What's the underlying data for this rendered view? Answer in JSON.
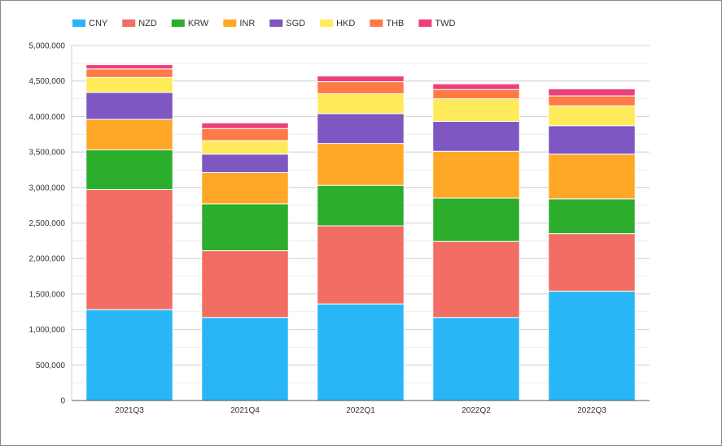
{
  "chart_data": {
    "type": "bar",
    "stacked": true,
    "categories": [
      "2021Q3",
      "2021Q4",
      "2022Q1",
      "2022Q2",
      "2022Q3"
    ],
    "ylim": [
      0,
      5000000
    ],
    "y_ticks": [
      "0",
      "500,000",
      "1,000,000",
      "1,500,000",
      "2,000,000",
      "2,500,000",
      "3,000,000",
      "3,500,000",
      "4,000,000",
      "4,500,000",
      "5,000,000"
    ],
    "grid": true,
    "legend_position": "top-left",
    "series": [
      {
        "name": "CNY",
        "color": "#29b6f6",
        "values": [
          1280000,
          1170000,
          1360000,
          1170000,
          1540000
        ]
      },
      {
        "name": "NZD",
        "color": "#f26d63",
        "values": [
          1690000,
          940000,
          1100000,
          1070000,
          810000
        ]
      },
      {
        "name": "KRW",
        "color": "#2cae2c",
        "values": [
          560000,
          660000,
          570000,
          610000,
          490000
        ]
      },
      {
        "name": "INR",
        "color": "#ffa726",
        "values": [
          430000,
          440000,
          590000,
          660000,
          630000
        ]
      },
      {
        "name": "SGD",
        "color": "#7e57c2",
        "values": [
          380000,
          260000,
          420000,
          420000,
          400000
        ]
      },
      {
        "name": "HKD",
        "color": "#ffeb5a",
        "values": [
          210000,
          190000,
          280000,
          320000,
          280000
        ]
      },
      {
        "name": "THB",
        "color": "#ff7a45",
        "values": [
          120000,
          170000,
          170000,
          130000,
          140000
        ]
      },
      {
        "name": "TWD",
        "color": "#ec407a",
        "values": [
          60000,
          80000,
          80000,
          80000,
          100000
        ]
      }
    ]
  }
}
